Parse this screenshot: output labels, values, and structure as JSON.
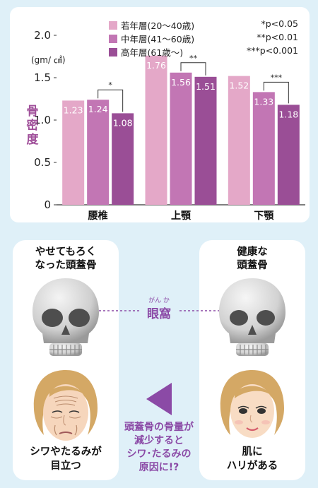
{
  "chart_data": {
    "type": "bar",
    "categories": [
      "腰椎",
      "上顎",
      "下顎"
    ],
    "series": [
      {
        "name": "若年層(20～40歳)",
        "color": "#e4a8c8",
        "values": [
          1.23,
          1.76,
          1.52
        ]
      },
      {
        "name": "中年層(41～60歳)",
        "color": "#c276b4",
        "values": [
          1.24,
          1.56,
          1.33
        ]
      },
      {
        "name": "高年層(61歳～)",
        "color": "#9a4e96",
        "values": [
          1.08,
          1.51,
          1.18
        ]
      }
    ],
    "value_labels": [
      [
        "1.23",
        "1.76",
        "1.52"
      ],
      [
        "1.24",
        "1.56",
        "1.33"
      ],
      [
        "1.08",
        "1.51",
        "1.18"
      ]
    ],
    "ylabel": "骨密度",
    "units": "(gm/ ㎠)",
    "ylim": [
      0,
      2.0
    ],
    "yticks": [
      0,
      0.5,
      1.0,
      1.5,
      2.0
    ],
    "ytick_labels": [
      "0",
      "0.5",
      "1.0",
      "1.5",
      "2.0"
    ],
    "legend_position": "top",
    "significance": [
      {
        "category": "腰椎",
        "series_from": 1,
        "series_to": 2,
        "mark": "*"
      },
      {
        "category": "上顎",
        "series_from": 1,
        "series_to": 2,
        "mark": "**"
      },
      {
        "category": "下顎",
        "series_from": 1,
        "series_to": 2,
        "mark": "***"
      }
    ],
    "significance_notes": [
      "*p<0.05",
      "**p<0.01",
      "***p<0.001"
    ]
  },
  "illustration": {
    "left_title": "やせてもろく\nなった頭蓋骨",
    "right_title": "健康な\n頭蓋骨",
    "orbit_ruby": "がん か",
    "orbit_label": "眼窩",
    "left_caption": "シワやたるみが\n目立つ",
    "right_caption": "肌に\nハリがある",
    "effect_text": "頭蓋骨の骨量が\n減少すると\nシワ･たるみの\n原因に!?",
    "colors": {
      "skull": "#d8d8d8",
      "skull_shadow": "#9a9a9a",
      "eye_socket": "#4e4e4e",
      "skin": "#f6d6bc",
      "hair": "#d4a865",
      "accent": "#8b4aa6"
    },
    "icons": [
      "thin-skull-icon",
      "healthy-skull-icon",
      "aged-face-icon",
      "young-face-icon",
      "arrow-left-icon"
    ]
  }
}
